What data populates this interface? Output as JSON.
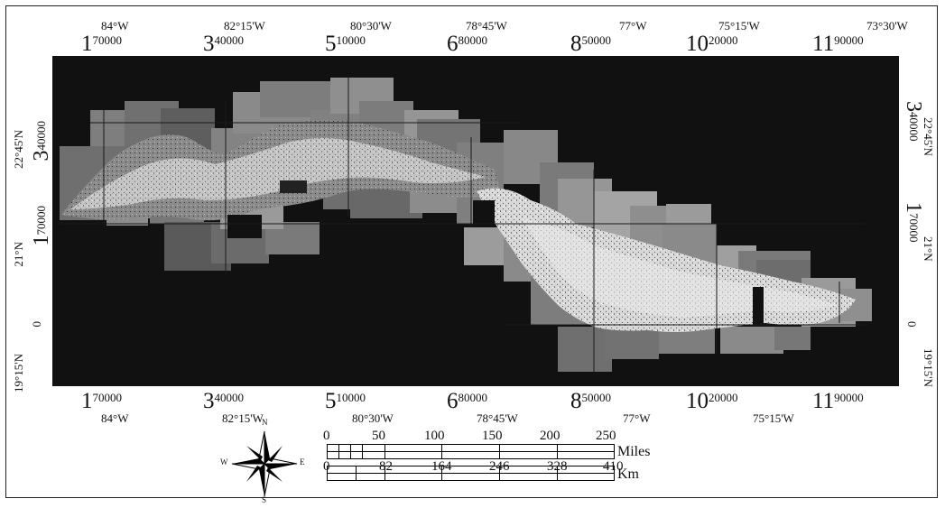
{
  "map": {
    "utm_x_top": [
      {
        "prefix": "1",
        "sup": "70000"
      },
      {
        "prefix": "3",
        "sup": "40000"
      },
      {
        "prefix": "5",
        "sup": "10000"
      },
      {
        "prefix": "6",
        "sup": "80000"
      },
      {
        "prefix": "8",
        "sup": "50000"
      },
      {
        "prefix": "10",
        "sup": "20000"
      },
      {
        "prefix": "11",
        "sup": "90000"
      }
    ],
    "utm_x_bottom": [
      {
        "prefix": "1",
        "sup": "70000"
      },
      {
        "prefix": "3",
        "sup": "40000"
      },
      {
        "prefix": "5",
        "sup": "10000"
      },
      {
        "prefix": "6",
        "sup": "80000"
      },
      {
        "prefix": "8",
        "sup": "50000"
      },
      {
        "prefix": "10",
        "sup": "20000"
      },
      {
        "prefix": "11",
        "sup": "90000"
      }
    ],
    "lon_top": [
      "84°W",
      "82°15'W",
      "80°30'W",
      "78°45'W",
      "77°W",
      "75°15'W",
      "73°30'W"
    ],
    "lon_bottom": [
      "84°W",
      "82°15'W",
      "80°30'W",
      "78°45'W",
      "77°W",
      "75°15'W"
    ],
    "lat_left": [
      "22°45'N",
      "21°N",
      "19°15'N"
    ],
    "lat_right": [
      "22°45'N",
      "21°N",
      "19°15'N"
    ],
    "utm_y_left": [
      {
        "prefix": "3",
        "sup": "40000"
      },
      {
        "prefix": "1",
        "sup": "70000"
      },
      {
        "prefix": "",
        "sup": "0"
      }
    ],
    "utm_y_right": [
      {
        "prefix": "3",
        "sup": "40000"
      },
      {
        "prefix": "1",
        "sup": "70000"
      },
      {
        "prefix": "",
        "sup": "0"
      }
    ],
    "background_color": "#111111",
    "imagery_tone": "grayscale"
  },
  "north_arrow": {
    "n": "N",
    "s": "S",
    "e": "E",
    "w": "W",
    "icon": "compass-rose-icon"
  },
  "scale_bar": {
    "miles_ticks": [
      "0",
      "50",
      "100",
      "150",
      "200",
      "250"
    ],
    "miles_unit": "Miles",
    "km_ticks": [
      "0",
      "82",
      "164",
      "246",
      "328",
      "410"
    ],
    "km_unit": "Km"
  }
}
